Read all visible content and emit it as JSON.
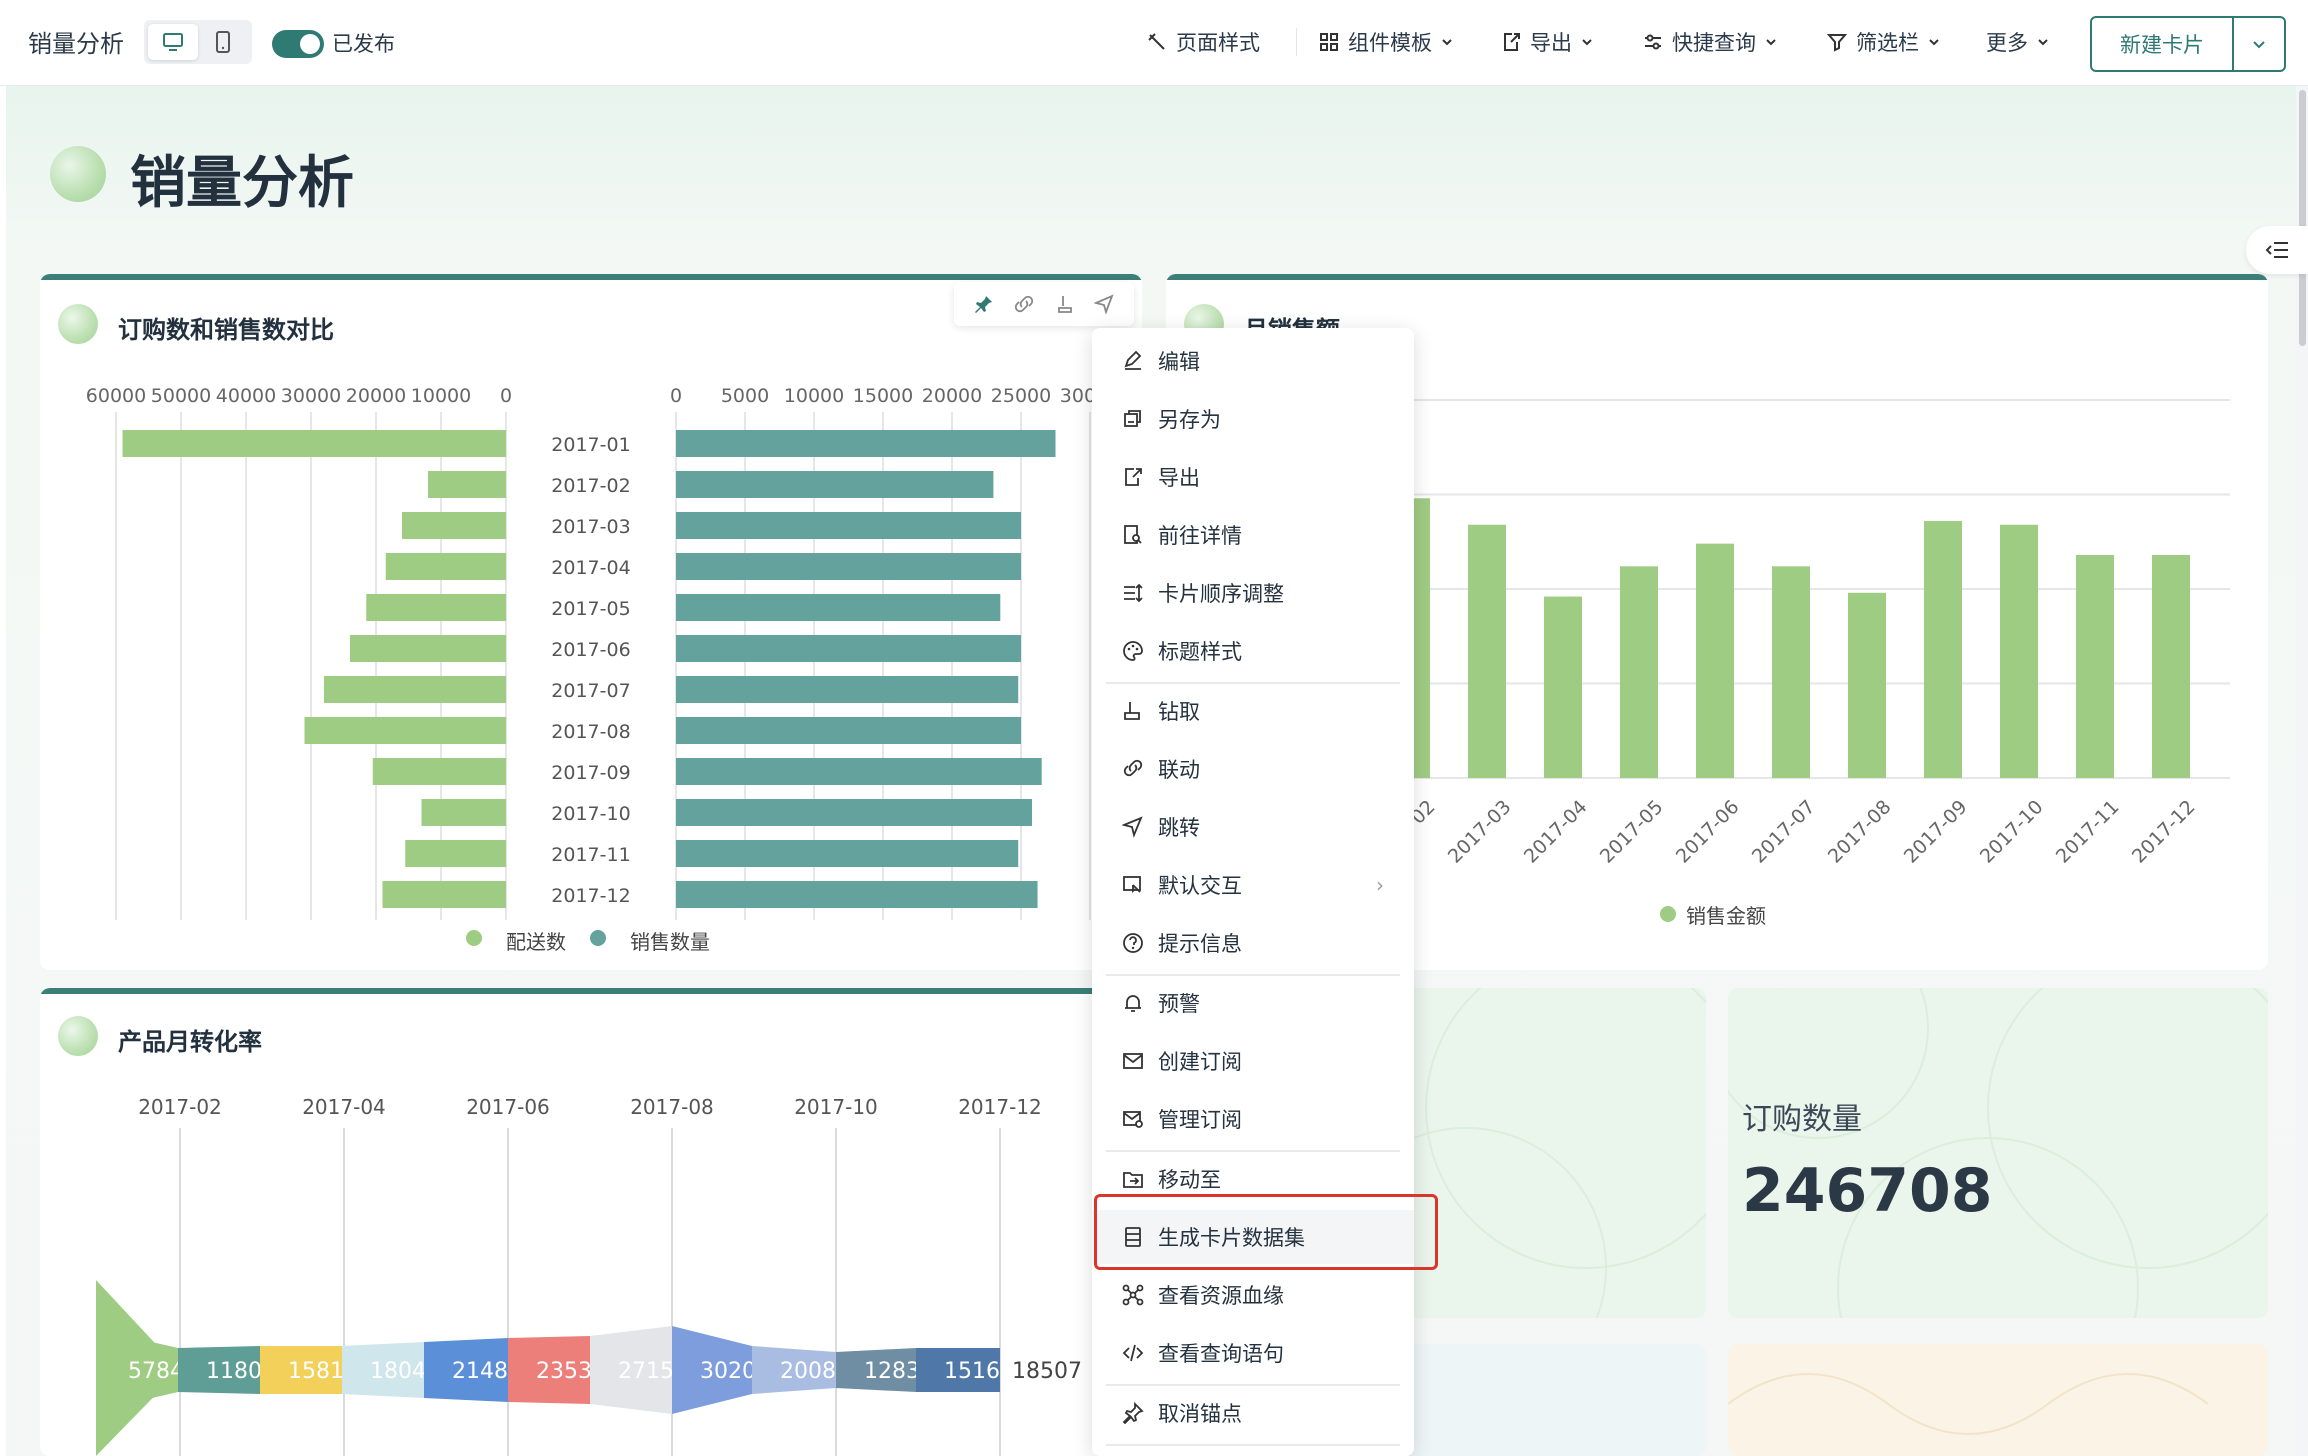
{
  "app": {
    "title": "销量分析",
    "published_label": "已发布"
  },
  "toolbar": {
    "page_style": "页面样式",
    "component_template": "组件模板",
    "export": "导出",
    "quick_query": "快捷查询",
    "filter_bar": "筛选栏",
    "more": "更多",
    "new_card": "新建卡片"
  },
  "page": {
    "title": "销量分析"
  },
  "cards": {
    "compare": {
      "title": "订购数和销售数对比",
      "legend": [
        "配送数",
        "销售数量"
      ],
      "colors": {
        "left": "#9fcc83",
        "right": "#64a39d"
      }
    },
    "monthly_sales": {
      "title": "月销售额",
      "legend": "销售金额"
    },
    "conversion": {
      "title": "产品月转化率",
      "axis_months": [
        "2017-02",
        "2017-04",
        "2017-06",
        "2017-08",
        "2017-10",
        "2017-12"
      ],
      "segment_labels": [
        "5784",
        "1180",
        "1581",
        "1804",
        "2148",
        "2353",
        "2715",
        "3020",
        "2008",
        "1283",
        "1516"
      ],
      "end_label": "18507"
    },
    "kpi": [
      {
        "label": "",
        "value": "246708"
      },
      {
        "label": "订购数量",
        "value": "246708"
      }
    ]
  },
  "menu": {
    "items": [
      {
        "label": "编辑",
        "icon": "edit-icon"
      },
      {
        "label": "另存为",
        "icon": "save-as-icon"
      },
      {
        "label": "导出",
        "icon": "export-icon"
      },
      {
        "label": "前往详情",
        "icon": "detail-icon"
      },
      {
        "label": "卡片顺序调整",
        "icon": "order-icon"
      },
      {
        "label": "标题样式",
        "icon": "palette-icon"
      },
      {
        "label": "钻取",
        "icon": "drill-icon"
      },
      {
        "label": "联动",
        "icon": "link-icon"
      },
      {
        "label": "跳转",
        "icon": "jump-icon"
      },
      {
        "label": "默认交互",
        "icon": "interaction-icon"
      },
      {
        "label": "提示信息",
        "icon": "help-icon"
      },
      {
        "label": "预警",
        "icon": "bell-icon"
      },
      {
        "label": "创建订阅",
        "icon": "mail-icon"
      },
      {
        "label": "管理订阅",
        "icon": "mail-settings-icon"
      },
      {
        "label": "移动至",
        "icon": "move-icon"
      },
      {
        "label": "生成卡片数据集",
        "icon": "dataset-icon"
      },
      {
        "label": "查看资源血缘",
        "icon": "lineage-icon"
      },
      {
        "label": "查看查询语句",
        "icon": "code-icon"
      },
      {
        "label": "取消锚点",
        "icon": "unpin-icon"
      }
    ]
  },
  "chart_data": [
    {
      "type": "bar",
      "title": "订购数和销售数对比",
      "orientation": "horizontal",
      "categories": [
        "2017-01",
        "2017-02",
        "2017-03",
        "2017-04",
        "2017-05",
        "2017-06",
        "2017-07",
        "2017-08",
        "2017-09",
        "2017-10",
        "2017-11",
        "2017-12"
      ],
      "series": [
        {
          "name": "配送数",
          "values": [
            59000,
            12000,
            16000,
            18500,
            21500,
            24000,
            28000,
            31000,
            20500,
            13000,
            15500,
            19000
          ]
        },
        {
          "name": "销售数量",
          "values": [
            27500,
            23000,
            25000,
            25000,
            23500,
            25000,
            24800,
            25000,
            26500,
            25800,
            24800,
            26200
          ]
        }
      ],
      "xlim_left": [
        60000,
        0
      ],
      "xlim_right": [
        0,
        30000
      ],
      "left_ticks": [
        "60000",
        "50000",
        "40000",
        "30000",
        "20000",
        "10000",
        "0"
      ],
      "right_ticks": [
        "0",
        "5000",
        "10000",
        "15000",
        "20000",
        "25000",
        "30000"
      ]
    },
    {
      "type": "bar",
      "title": "月销售额",
      "categories": [
        "2017-02",
        "2017-03",
        "2017-04",
        "2017-05",
        "2017-06",
        "2017-07",
        "2017-08",
        "2017-09",
        "2017-10",
        "2017-11",
        "2017-12"
      ],
      "series": [
        {
          "name": "销售金额",
          "values": [
            74,
            67,
            48,
            56,
            62,
            56,
            49,
            68,
            67,
            59,
            59
          ]
        }
      ],
      "visible_tick_labels": [
        "02",
        "2017-03",
        "2017-04",
        "2017-05",
        "2017-06",
        "2017-07",
        "2017-08",
        "2017-09",
        "2017-10",
        "2017-11",
        "2017-12"
      ]
    }
  ]
}
